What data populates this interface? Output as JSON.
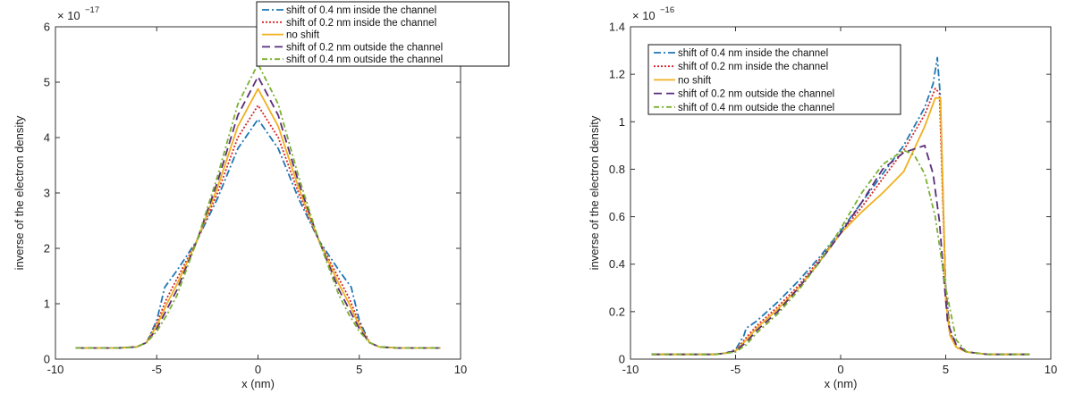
{
  "chart_data": [
    {
      "type": "line",
      "xlabel": "x (nm)",
      "ylabel": "inverse of the electron density",
      "xlim": [
        -10,
        10
      ],
      "ylim": [
        0,
        6
      ],
      "exponent_label": "× 10",
      "exponent_power": "−17",
      "x_ticks": [
        "-10",
        "-5",
        "0",
        "5",
        "10"
      ],
      "y_ticks": [
        "0",
        "1",
        "2",
        "3",
        "4",
        "5",
        "6"
      ],
      "legend_position": "top-right",
      "series": [
        {
          "name": "shift of 0.4 nm inside the channel",
          "color": "#1f77b4",
          "dash": "8,3,2,3",
          "x": [
            -9,
            -7,
            -6,
            -5.5,
            -5,
            -4.6,
            -4.5,
            -4,
            -3,
            -2,
            -1,
            0,
            1,
            2,
            3,
            4,
            4.5,
            4.6,
            5,
            5.5,
            6,
            7,
            9
          ],
          "y": [
            0.2,
            0.2,
            0.22,
            0.3,
            0.7,
            1.3,
            1.35,
            1.6,
            2.15,
            2.9,
            3.8,
            4.33,
            3.8,
            2.9,
            2.15,
            1.6,
            1.35,
            1.3,
            0.7,
            0.3,
            0.22,
            0.2,
            0.2
          ]
        },
        {
          "name": "shift of 0.2 nm inside the channel",
          "color": "#d62728",
          "dash": "2,2",
          "x": [
            -9,
            -7,
            -6,
            -5.5,
            -5,
            -4.5,
            -4,
            -3,
            -2,
            -1,
            0,
            1,
            2,
            3,
            4,
            4.5,
            5,
            5.5,
            6,
            7,
            9
          ],
          "y": [
            0.2,
            0.2,
            0.22,
            0.3,
            0.65,
            1.1,
            1.45,
            2.15,
            3.0,
            4.0,
            4.58,
            4.0,
            3.0,
            2.15,
            1.45,
            1.1,
            0.65,
            0.3,
            0.22,
            0.2,
            0.2
          ]
        },
        {
          "name": "no shift",
          "color": "#f0b020",
          "dash": "",
          "x": [
            -9,
            -7,
            -6,
            -5.5,
            -5,
            -4.5,
            -4,
            -3,
            -2,
            -1,
            0,
            1,
            2,
            3,
            4,
            4.5,
            5,
            5.5,
            6,
            7,
            9
          ],
          "y": [
            0.2,
            0.2,
            0.22,
            0.3,
            0.6,
            1.0,
            1.35,
            2.15,
            3.1,
            4.2,
            4.88,
            4.2,
            3.1,
            2.15,
            1.35,
            1.0,
            0.6,
            0.3,
            0.22,
            0.2,
            0.2
          ]
        },
        {
          "name": "shift of 0.2 nm outside the channel",
          "color": "#5a2d7a",
          "dash": "9,5",
          "x": [
            -9,
            -7,
            -6,
            -5.5,
            -5,
            -4.5,
            -4,
            -3,
            -2,
            -1,
            0,
            1,
            2,
            3,
            4,
            4.5,
            5,
            5.5,
            6,
            7,
            9
          ],
          "y": [
            0.2,
            0.2,
            0.22,
            0.3,
            0.55,
            0.9,
            1.25,
            2.15,
            3.2,
            4.4,
            5.1,
            4.4,
            3.2,
            2.15,
            1.25,
            0.9,
            0.55,
            0.3,
            0.22,
            0.2,
            0.2
          ]
        },
        {
          "name": "shift of 0.4 nm outside the channel",
          "color": "#7ab030",
          "dash": "6,3,2,3",
          "x": [
            -9,
            -7,
            -6,
            -5.5,
            -5,
            -4.5,
            -4,
            -3,
            -2,
            -1,
            0,
            1,
            2,
            3,
            4,
            4.5,
            5,
            5.5,
            6,
            7,
            9
          ],
          "y": [
            0.2,
            0.2,
            0.22,
            0.3,
            0.5,
            0.8,
            1.15,
            2.15,
            3.3,
            4.6,
            5.33,
            4.6,
            3.3,
            2.15,
            1.15,
            0.8,
            0.5,
            0.3,
            0.22,
            0.2,
            0.2
          ]
        }
      ]
    },
    {
      "type": "line",
      "xlabel": "x (nm)",
      "ylabel": "inverse of the electron density",
      "xlim": [
        -10,
        10
      ],
      "ylim": [
        0,
        1.4
      ],
      "exponent_label": "× 10",
      "exponent_power": "−16",
      "x_ticks": [
        "-10",
        "-5",
        "0",
        "5",
        "10"
      ],
      "y_ticks": [
        "0",
        "0.2",
        "0.4",
        "0.6",
        "0.8",
        "1",
        "1.2",
        "1.4"
      ],
      "legend_position": "top-left",
      "series": [
        {
          "name": "shift of 0.4 nm inside the channel",
          "color": "#1f77b4",
          "dash": "8,3,2,3",
          "x": [
            -9,
            -6,
            -5.5,
            -5,
            -4.6,
            -4.5,
            -4,
            -3,
            -2,
            -1,
            0,
            1,
            2,
            3,
            4,
            4.4,
            4.6,
            4.75,
            4.85,
            5,
            5.2,
            5.5,
            6,
            7,
            9
          ],
          "y": [
            0.02,
            0.02,
            0.025,
            0.04,
            0.1,
            0.13,
            0.16,
            0.24,
            0.33,
            0.43,
            0.54,
            0.66,
            0.78,
            0.9,
            1.06,
            1.16,
            1.27,
            1.1,
            0.75,
            0.3,
            0.12,
            0.05,
            0.03,
            0.02,
            0.02
          ]
        },
        {
          "name": "shift of 0.2 nm inside the channel",
          "color": "#d62728",
          "dash": "2,2",
          "x": [
            -9,
            -6,
            -5.5,
            -5,
            -4.5,
            -4,
            -3,
            -2,
            -1,
            0,
            1,
            2,
            3,
            4,
            4.5,
            4.7,
            4.85,
            5,
            5.2,
            5.5,
            6,
            7,
            9
          ],
          "y": [
            0.02,
            0.02,
            0.025,
            0.035,
            0.09,
            0.14,
            0.22,
            0.31,
            0.42,
            0.53,
            0.64,
            0.76,
            0.88,
            1.03,
            1.14,
            1.12,
            0.7,
            0.28,
            0.11,
            0.05,
            0.03,
            0.02,
            0.02
          ]
        },
        {
          "name": "no shift",
          "color": "#f0b020",
          "dash": "",
          "x": [
            -9,
            -6,
            -5.5,
            -5,
            -4.5,
            -4,
            -3,
            -2,
            -1,
            0,
            1,
            2,
            3,
            4,
            4.5,
            4.75,
            4.9,
            5,
            5.2,
            5.5,
            6,
            7,
            9
          ],
          "y": [
            0.02,
            0.02,
            0.025,
            0.035,
            0.08,
            0.13,
            0.21,
            0.3,
            0.41,
            0.53,
            0.62,
            0.7,
            0.79,
            0.98,
            1.1,
            1.1,
            0.6,
            0.25,
            0.1,
            0.05,
            0.03,
            0.02,
            0.02
          ]
        },
        {
          "name": "shift of 0.2 nm outside the channel",
          "color": "#5a2d7a",
          "dash": "9,5",
          "x": [
            -9,
            -6,
            -5.5,
            -5,
            -4.5,
            -4,
            -3,
            -2,
            -1,
            0,
            1,
            2,
            3,
            4,
            4.4,
            4.7,
            4.9,
            5.1,
            5.5,
            6,
            7,
            9
          ],
          "y": [
            0.02,
            0.02,
            0.025,
            0.035,
            0.07,
            0.12,
            0.2,
            0.3,
            0.41,
            0.53,
            0.66,
            0.8,
            0.87,
            0.9,
            0.78,
            0.58,
            0.35,
            0.15,
            0.06,
            0.03,
            0.02,
            0.02
          ]
        },
        {
          "name": "shift of 0.4 nm outside the channel",
          "color": "#7ab030",
          "dash": "6,3,2,3",
          "x": [
            -9,
            -6,
            -5.5,
            -5,
            -4.5,
            -4,
            -3,
            -2,
            -1,
            0,
            1,
            2,
            3,
            3.5,
            4,
            4.5,
            5,
            5.5,
            6,
            7,
            9
          ],
          "y": [
            0.02,
            0.02,
            0.025,
            0.03,
            0.06,
            0.11,
            0.19,
            0.29,
            0.41,
            0.55,
            0.7,
            0.82,
            0.88,
            0.86,
            0.78,
            0.6,
            0.3,
            0.08,
            0.03,
            0.02,
            0.02
          ]
        }
      ]
    }
  ]
}
